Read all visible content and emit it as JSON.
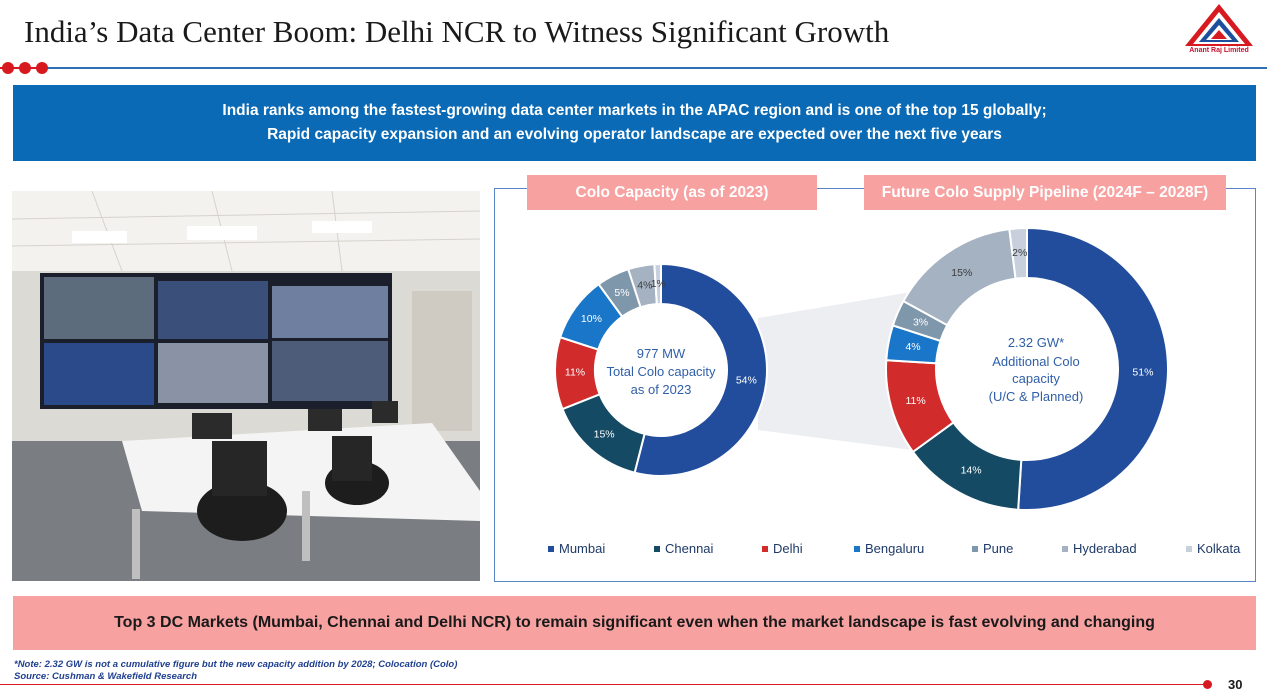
{
  "header": {
    "title": "India’s Data Center Boom: Delhi NCR to Witness Significant Growth",
    "logo_text": "Anant Raj Limited"
  },
  "banner": {
    "line1": "India ranks among the fastest-growing data center markets in the APAC region and is one of the top 15 globally;",
    "line2": "Rapid capacity expansion and an evolving operator landscape are expected over the next five years"
  },
  "colors": {
    "Mumbai": "#214d9c",
    "Chennai": "#144a63",
    "Delhi": "#d12b2b",
    "Bengaluru": "#1976c9",
    "Pune": "#7f97ab",
    "Hyderabad": "#a4b2c1",
    "Kolkata": "#c7d0dc"
  },
  "chart_data": [
    {
      "type": "pie",
      "variant": "donut",
      "title": "Colo Capacity (as of 2023)",
      "center_text": [
        "977 MW",
        "Total Colo capacity",
        "as of 2023"
      ],
      "categories": [
        "Mumbai",
        "Chennai",
        "Delhi",
        "Bengaluru",
        "Pune",
        "Hyderabad",
        "Kolkata"
      ],
      "values": [
        54,
        15,
        11,
        10,
        5,
        4,
        1
      ],
      "labels": [
        "54%",
        "15%",
        "11%",
        "10%",
        "5%",
        "4%",
        "1%"
      ],
      "unit": "%"
    },
    {
      "type": "pie",
      "variant": "donut",
      "title": "Future Colo Supply Pipeline (2024F – 2028F)",
      "center_text": [
        "2.32 GW*",
        "Additional Colo",
        "capacity",
        "(U/C & Planned)"
      ],
      "categories": [
        "Mumbai",
        "Chennai",
        "Delhi",
        "Bengaluru",
        "Pune",
        "Hyderabad",
        "Kolkata"
      ],
      "values": [
        51,
        14,
        11,
        4,
        3,
        15,
        2
      ],
      "labels": [
        "51%",
        "14%",
        "11%",
        "4%",
        "3%",
        "15%",
        "2%"
      ],
      "unit": "%"
    }
  ],
  "legend": [
    "Mumbai",
    "Chennai",
    "Delhi",
    "Bengaluru",
    "Pune",
    "Hyderabad",
    "Kolkata"
  ],
  "bottom_banner": "Top 3 DC Markets (Mumbai, Chennai and Delhi NCR) to remain significant even when the market landscape is fast evolving and changing",
  "footer": {
    "note": "*Note: 2.32 GW is not a cumulative figure but the new capacity addition by 2028; Colocation (Colo)",
    "source": "Source: Cushman & Wakefield Research",
    "page_number": "30"
  }
}
